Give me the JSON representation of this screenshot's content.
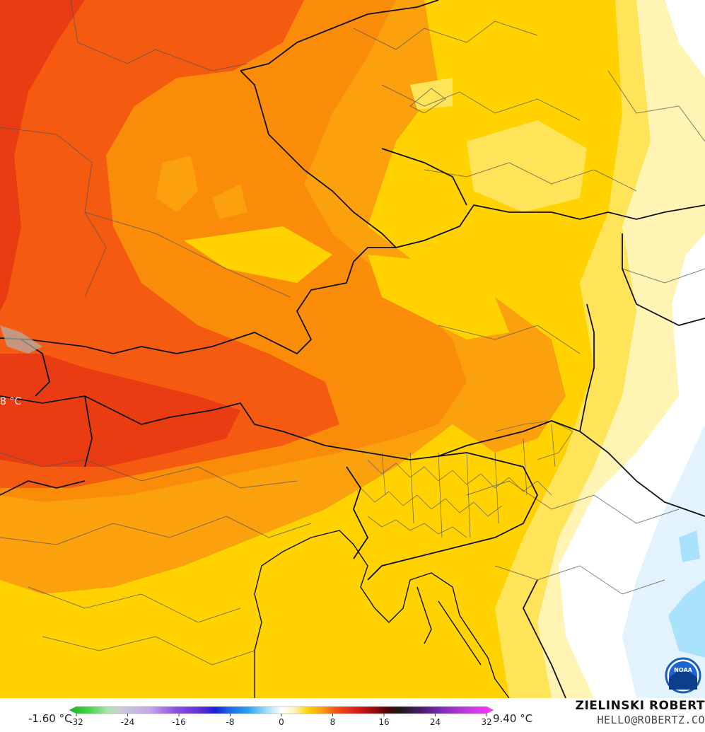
{
  "map": {
    "side_label": "8 °C",
    "logo_icon": "noaa-logo-icon",
    "logo_text": "NOAA",
    "colors": {
      "dark_red": "#ea3c12",
      "red_orange": "#f45a10",
      "orange": "#fa8c0a",
      "light_orange": "#fba10d",
      "gold": "#ffd200",
      "yellow": "#ffe45a",
      "pale_yellow": "#fff4b4",
      "cream": "#fffbe0",
      "white": "#ffffff",
      "pale_blue": "#e2f3fd",
      "light_blue": "#a8e3fb",
      "border_country": "#111111",
      "border_region": "#555555"
    }
  },
  "legend": {
    "min_label": "-1.60 °C",
    "max_label": "9.40 °C",
    "ticks": [
      "-32",
      "-24",
      "-16",
      "-8",
      "0",
      "8",
      "16",
      "24",
      "32"
    ],
    "tick_values": [
      -32,
      -24,
      -16,
      -8,
      0,
      8,
      16,
      24,
      32
    ],
    "range": [
      -32,
      32
    ],
    "color_stops": [
      {
        "value": -32,
        "color": "#16b51f"
      },
      {
        "value": -29,
        "color": "#44d54b"
      },
      {
        "value": -26,
        "color": "#b5e3b5"
      },
      {
        "value": -24,
        "color": "#c9c9d9"
      },
      {
        "value": -20,
        "color": "#c9a7ea"
      },
      {
        "value": -16,
        "color": "#8d53e0"
      },
      {
        "value": -12,
        "color": "#5e2bd9"
      },
      {
        "value": -10,
        "color": "#1a20d6"
      },
      {
        "value": -8,
        "color": "#1b63e8"
      },
      {
        "value": -5,
        "color": "#2aa3f0"
      },
      {
        "value": -2,
        "color": "#a8e3fb"
      },
      {
        "value": 0,
        "color": "#ffffff"
      },
      {
        "value": 2,
        "color": "#fff4b4"
      },
      {
        "value": 4,
        "color": "#ffd200"
      },
      {
        "value": 6,
        "color": "#fba10d"
      },
      {
        "value": 8,
        "color": "#f45a10"
      },
      {
        "value": 11,
        "color": "#e11d1d"
      },
      {
        "value": 14,
        "color": "#9a0b0b"
      },
      {
        "value": 16,
        "color": "#4b0808"
      },
      {
        "value": 18,
        "color": "#1a1a1a"
      },
      {
        "value": 21,
        "color": "#4a1a6a"
      },
      {
        "value": 24,
        "color": "#7a2bb2"
      },
      {
        "value": 28,
        "color": "#c23ae0"
      },
      {
        "value": 32,
        "color": "#ff33ff"
      }
    ]
  },
  "credits": {
    "author": "ZIELINSKI ROBERT",
    "email": "HELLO@ROBERTZ.CO"
  }
}
